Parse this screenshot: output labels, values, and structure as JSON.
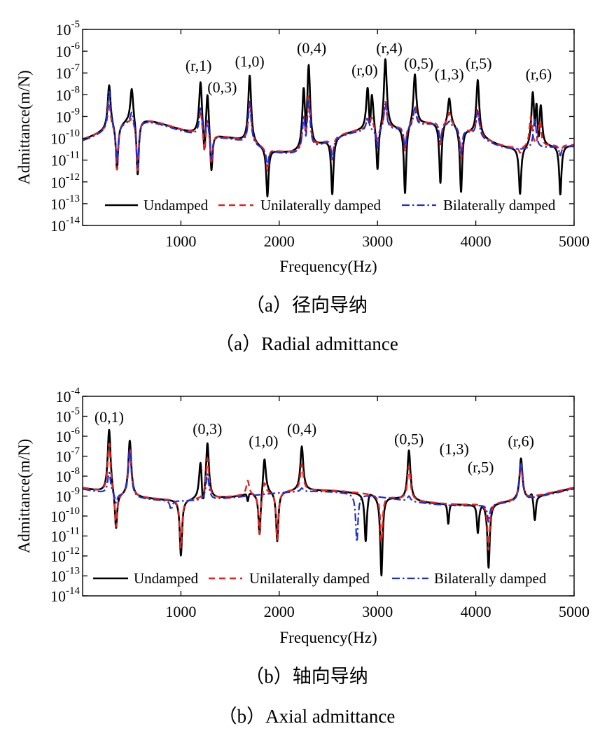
{
  "colors": {
    "undamped": "#000000",
    "unilateral": "#e8231f",
    "bilateral": "#1f2fd0"
  },
  "chart_data": [
    {
      "id": "a",
      "type": "line",
      "y_scale": "log",
      "xlabel": "Frequency(Hz)",
      "ylabel": "Admittance(m/N)",
      "xlim": [
        0,
        5000
      ],
      "ylim_exp": [
        -14,
        -5
      ],
      "x_ticks": [
        "1000",
        "2000",
        "3000",
        "4000",
        "5000"
      ],
      "x_tick_values": [
        1000,
        2000,
        3000,
        4000,
        5000
      ],
      "y_tick_exponents": [
        "-14",
        "-13",
        "-12",
        "-11",
        "-10",
        "-9",
        "-8",
        "-7",
        "-6",
        "-5"
      ],
      "y_tick_base": "10",
      "legend_placement": "bottom",
      "legend": [
        "Undamped",
        "Unilaterally damped",
        "Bilaterally damped"
      ],
      "caption_cn": "（a）径向导纳",
      "caption_en": "（a）Radial admittance",
      "annotations": [
        {
          "text": "(r,1)",
          "x": 1180,
          "y_exp": -6.9
        },
        {
          "text": "(0,3)",
          "x": 1420,
          "y_exp": -7.9
        },
        {
          "text": "(1,0)",
          "x": 1700,
          "y_exp": -6.7
        },
        {
          "text": "(0,4)",
          "x": 2330,
          "y_exp": -6.1
        },
        {
          "text": "(r,0)",
          "x": 2870,
          "y_exp": -7.1
        },
        {
          "text": "(r,4)",
          "x": 3120,
          "y_exp": -6.1
        },
        {
          "text": "(0,5)",
          "x": 3420,
          "y_exp": -6.8
        },
        {
          "text": "(1,3)",
          "x": 3730,
          "y_exp": -7.3
        },
        {
          "text": "(r,5)",
          "x": 4030,
          "y_exp": -6.8
        },
        {
          "text": "(r,6)",
          "x": 4640,
          "y_exp": -7.3
        }
      ],
      "series": [
        {
          "name": "Undamped",
          "resonances": [
            [
              270,
              -7.5
            ],
            [
              500,
              -7.6
            ],
            [
              1200,
              -7.3
            ],
            [
              1270,
              -7.8
            ],
            [
              1700,
              -7.1
            ],
            [
              2250,
              -7.5
            ],
            [
              2300,
              -6.6
            ],
            [
              2900,
              -7.5
            ],
            [
              2940,
              -7.4
            ],
            [
              3080,
              -6.3
            ],
            [
              3380,
              -7.0
            ],
            [
              3730,
              -8.1
            ],
            [
              4020,
              -7.3
            ],
            [
              4580,
              -7.8
            ],
            [
              4620,
              -7.8
            ],
            [
              4660,
              -8.3
            ]
          ],
          "antiresonances": [
            [
              350,
              -11.5
            ],
            [
              560,
              -11.8
            ],
            [
              1240,
              -11.0
            ],
            [
              1310,
              -11.8
            ],
            [
              1880,
              -12.7
            ],
            [
              2260,
              -10.8
            ],
            [
              2540,
              -12.6
            ],
            [
              2930,
              -10.6
            ],
            [
              3000,
              -11.6
            ],
            [
              3280,
              -12.6
            ],
            [
              3640,
              -12.1
            ],
            [
              3850,
              -12.5
            ],
            [
              4450,
              -12.6
            ],
            [
              4630,
              -11.4
            ],
            [
              4860,
              -12.6
            ]
          ]
        },
        {
          "name": "Unilaterally damped",
          "resonances": [
            [
              270,
              -8.3
            ],
            [
              500,
              -9.0
            ],
            [
              1200,
              -8.6
            ],
            [
              1270,
              -9.0
            ],
            [
              1700,
              -8.3
            ],
            [
              2250,
              -9.0
            ],
            [
              2300,
              -8.0
            ],
            [
              2900,
              -9.1
            ],
            [
              2940,
              -9.0
            ],
            [
              3080,
              -8.3
            ],
            [
              3380,
              -8.5
            ],
            [
              3730,
              -8.8
            ],
            [
              4020,
              -8.6
            ],
            [
              4560,
              -9.0
            ],
            [
              4650,
              -9.2
            ]
          ],
          "antiresonances": [
            [
              350,
              -11.5
            ],
            [
              560,
              -11.6
            ],
            [
              1240,
              -10.8
            ],
            [
              1310,
              -11.3
            ],
            [
              1880,
              -11.5
            ],
            [
              2540,
              -11.0
            ],
            [
              3000,
              -10.3
            ],
            [
              3280,
              -10.6
            ],
            [
              3640,
              -10.3
            ],
            [
              3850,
              -11.0
            ],
            [
              4450,
              -10.7
            ],
            [
              4860,
              -10.8
            ]
          ]
        },
        {
          "name": "Bilaterally damped",
          "resonances": [
            [
              270,
              -7.8
            ],
            [
              500,
              -8.7
            ],
            [
              1200,
              -8.6
            ],
            [
              1270,
              -9.1
            ],
            [
              1700,
              -8.3
            ],
            [
              2250,
              -9.0
            ],
            [
              2300,
              -8.2
            ],
            [
              2900,
              -9.0
            ],
            [
              3080,
              -8.4
            ],
            [
              3380,
              -8.6
            ],
            [
              3730,
              -9.2
            ],
            [
              4020,
              -8.7
            ],
            [
              4600,
              -9.1
            ]
          ],
          "antiresonances": [
            [
              350,
              -11.2
            ],
            [
              560,
              -11.4
            ],
            [
              1310,
              -11.1
            ],
            [
              1880,
              -11.3
            ],
            [
              2540,
              -11.0
            ],
            [
              3000,
              -10.5
            ],
            [
              3280,
              -10.5
            ],
            [
              3640,
              -10.2
            ],
            [
              3850,
              -10.8
            ],
            [
              4450,
              -10.2
            ],
            [
              4860,
              -10.8
            ]
          ]
        }
      ]
    },
    {
      "id": "b",
      "type": "line",
      "y_scale": "log",
      "xlabel": "Frequency(Hz)",
      "ylabel": "Admittance(m/N)",
      "xlim": [
        0,
        5000
      ],
      "ylim_exp": [
        -14,
        -4
      ],
      "x_ticks": [
        "1000",
        "2000",
        "3000",
        "4000",
        "5000"
      ],
      "x_tick_values": [
        1000,
        2000,
        3000,
        4000,
        5000
      ],
      "y_tick_exponents": [
        "-14",
        "-13",
        "-12",
        "-11",
        "-10",
        "-9",
        "-8",
        "-7",
        "-6",
        "-5",
        "-4"
      ],
      "y_tick_base": "10",
      "legend_placement": "bottom",
      "legend": [
        "Undamped",
        "Unilaterally damped",
        "Bilaterally damped"
      ],
      "caption_cn": "（b）轴向导纳",
      "caption_en": "（b）Axial admittance",
      "annotations": [
        {
          "text": "(0,1)",
          "x": 270,
          "y_exp": -5.3
        },
        {
          "text": "(0,3)",
          "x": 1270,
          "y_exp": -5.9
        },
        {
          "text": "(1,0)",
          "x": 1840,
          "y_exp": -6.5
        },
        {
          "text": "(0,4)",
          "x": 2230,
          "y_exp": -5.9
        },
        {
          "text": "(0,5)",
          "x": 3320,
          "y_exp": -6.4
        },
        {
          "text": "(1,3)",
          "x": 3780,
          "y_exp": -6.9
        },
        {
          "text": "(r,5)",
          "x": 4050,
          "y_exp": -7.8
        },
        {
          "text": "(r,6)",
          "x": 4460,
          "y_exp": -6.5
        }
      ],
      "series": [
        {
          "name": "Undamped",
          "resonances": [
            [
              270,
              -5.6
            ],
            [
              480,
              -6.2
            ],
            [
              1200,
              -7.1
            ],
            [
              1270,
              -6.3
            ],
            [
              1680,
              -7.8
            ],
            [
              1850,
              -7.0
            ],
            [
              2230,
              -6.5
            ],
            [
              2920,
              -8.7
            ],
            [
              3320,
              -6.7
            ],
            [
              3720,
              -7.8
            ],
            [
              4010,
              -9.1
            ],
            [
              4460,
              -7.1
            ],
            [
              4570,
              -8.7
            ],
            [
              4620,
              -8.9
            ],
            [
              4670,
              -9.4
            ]
          ],
          "antiresonances": [
            [
              340,
              -10.8
            ],
            [
              1000,
              -12.0
            ],
            [
              1220,
              -9.9
            ],
            [
              1680,
              -10.4
            ],
            [
              1800,
              -11.1
            ],
            [
              1980,
              -11.3
            ],
            [
              2880,
              -11.3
            ],
            [
              3040,
              -13.0
            ],
            [
              3720,
              -12.0
            ],
            [
              4020,
              -11.1
            ],
            [
              4130,
              -12.6
            ],
            [
              4600,
              -10.3
            ]
          ]
        },
        {
          "name": "Unilaterally damped",
          "resonances": [
            [
              270,
              -6.3
            ],
            [
              480,
              -6.6
            ],
            [
              1270,
              -7.1
            ],
            [
              1680,
              -8.2
            ],
            [
              1850,
              -8.2
            ],
            [
              2230,
              -7.4
            ],
            [
              2880,
              -9.1
            ],
            [
              3320,
              -7.5
            ],
            [
              4460,
              -7.4
            ]
          ],
          "antiresonances": [
            [
              340,
              -10.7
            ],
            [
              1000,
              -11.6
            ],
            [
              1800,
              -11.0
            ],
            [
              1980,
              -11.2
            ],
            [
              3040,
              -11.3
            ],
            [
              4130,
              -11.7
            ]
          ]
        },
        {
          "name": "Bilaterally damped",
          "resonances": [
            [
              270,
              -7.8
            ],
            [
              480,
              -6.6
            ],
            [
              1270,
              -7.9
            ],
            [
              2230,
              -8.6
            ],
            [
              3320,
              -9.0
            ],
            [
              4460,
              -7.3
            ]
          ],
          "antiresonances": [
            [
              340,
              -9.4
            ],
            [
              900,
              -9.7
            ],
            [
              2790,
              -11.3
            ],
            [
              4130,
              -10.3
            ]
          ]
        }
      ]
    }
  ]
}
